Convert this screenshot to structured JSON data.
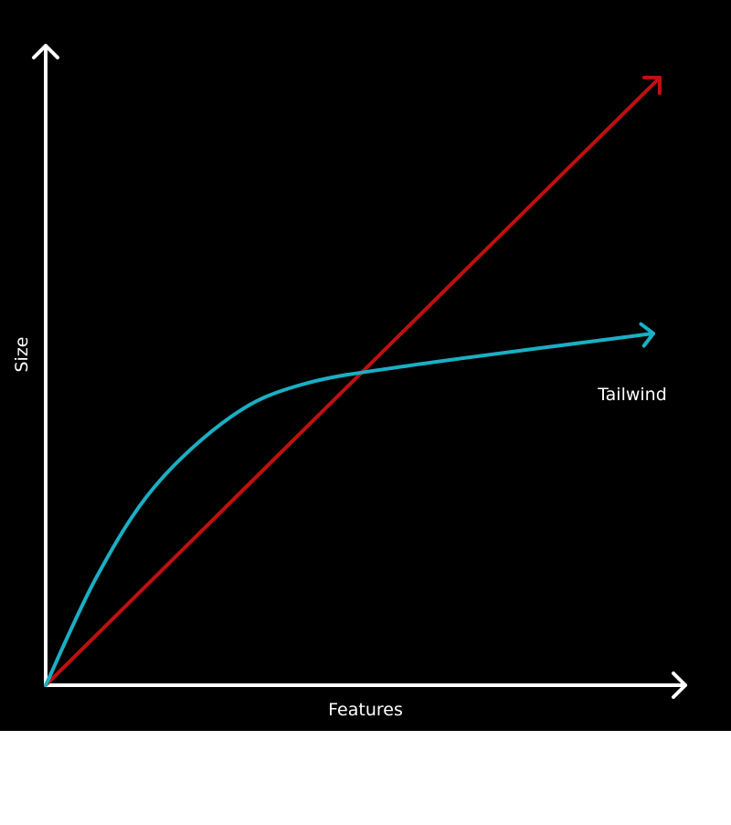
{
  "chart_data": {
    "type": "line",
    "title": "",
    "xlabel": "Features",
    "ylabel": "Size",
    "xlim": [
      0,
      100
    ],
    "ylim": [
      0,
      100
    ],
    "grid": false,
    "background": "#000000",
    "axis_color": "#ffffff",
    "series": [
      {
        "name": "",
        "color": "#c01010",
        "points": [
          [
            0,
            0
          ],
          [
            96,
            95
          ]
        ]
      },
      {
        "name": "Tailwind",
        "color": "#1aafc4",
        "points": [
          [
            0,
            0
          ],
          [
            8,
            17
          ],
          [
            17,
            31
          ],
          [
            29,
            42
          ],
          [
            40,
            47
          ],
          [
            57,
            50
          ],
          [
            95,
            55
          ]
        ]
      }
    ]
  }
}
